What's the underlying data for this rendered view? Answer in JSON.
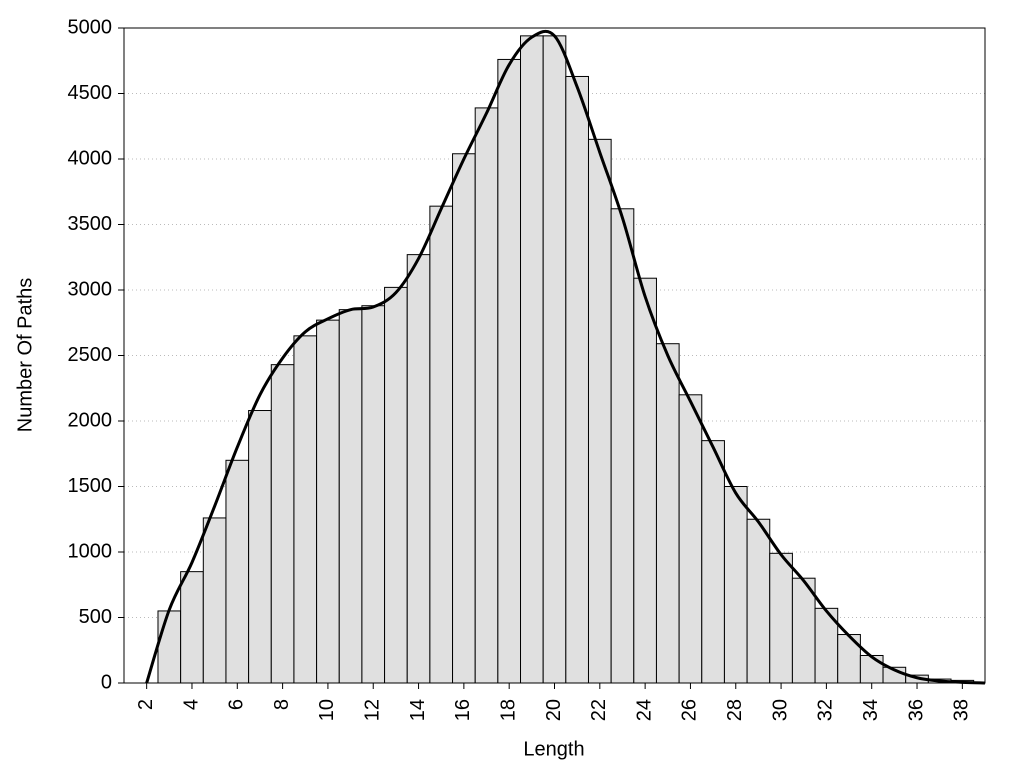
{
  "chart_data": {
    "type": "histogram",
    "xlabel": "Length",
    "ylabel": "Number Of Paths",
    "bins": [
      2.5,
      3.5,
      4.5,
      5.5,
      6.5,
      7.5,
      8.5,
      9.5,
      10.5,
      11.5,
      12.5,
      13.5,
      14.5,
      15.5,
      16.5,
      17.5,
      18.5,
      19.5,
      20.5,
      21.5,
      22.5,
      23.5,
      24.5,
      25.5,
      26.5,
      27.5,
      28.5,
      29.5,
      30.5,
      31.5,
      32.5,
      33.5,
      34.5,
      35.5,
      36.5,
      37.5,
      38.5
    ],
    "values": [
      550,
      850,
      1260,
      1700,
      2080,
      2430,
      2650,
      2770,
      2850,
      2880,
      3020,
      3270,
      3640,
      4040,
      4390,
      4760,
      4940,
      4940,
      4630,
      4150,
      3620,
      3090,
      2590,
      2200,
      1850,
      1500,
      1250,
      990,
      800,
      570,
      370,
      210,
      120,
      60,
      30,
      20
    ],
    "color": "#e0e0e0",
    "edgecolor": "#000000",
    "curve": {
      "color": "#000000",
      "x": [
        2,
        3,
        4,
        5,
        6,
        7,
        8,
        9,
        10,
        11,
        12,
        13,
        14,
        15,
        16,
        17,
        18,
        19,
        20,
        21,
        22,
        23,
        24,
        25,
        26,
        27,
        28,
        29,
        30,
        31,
        32,
        33,
        34,
        35,
        36,
        37,
        38,
        39
      ],
      "values": [
        0,
        560,
        920,
        1350,
        1800,
        2200,
        2480,
        2680,
        2780,
        2850,
        2870,
        2980,
        3240,
        3620,
        4000,
        4350,
        4720,
        4930,
        4940,
        4550,
        4050,
        3550,
        2950,
        2500,
        2150,
        1800,
        1450,
        1230,
        980,
        780,
        550,
        360,
        200,
        100,
        40,
        15,
        5,
        0
      ]
    },
    "xlim": [
      1,
      39
    ],
    "ylim": [
      0,
      5000
    ],
    "xticks": [
      2,
      4,
      6,
      8,
      10,
      12,
      14,
      16,
      18,
      20,
      22,
      24,
      26,
      28,
      30,
      32,
      34,
      36,
      38
    ],
    "yticks": [
      0,
      500,
      1000,
      1500,
      2000,
      2500,
      3000,
      3500,
      4000,
      4500,
      5000
    ],
    "grid": true
  }
}
